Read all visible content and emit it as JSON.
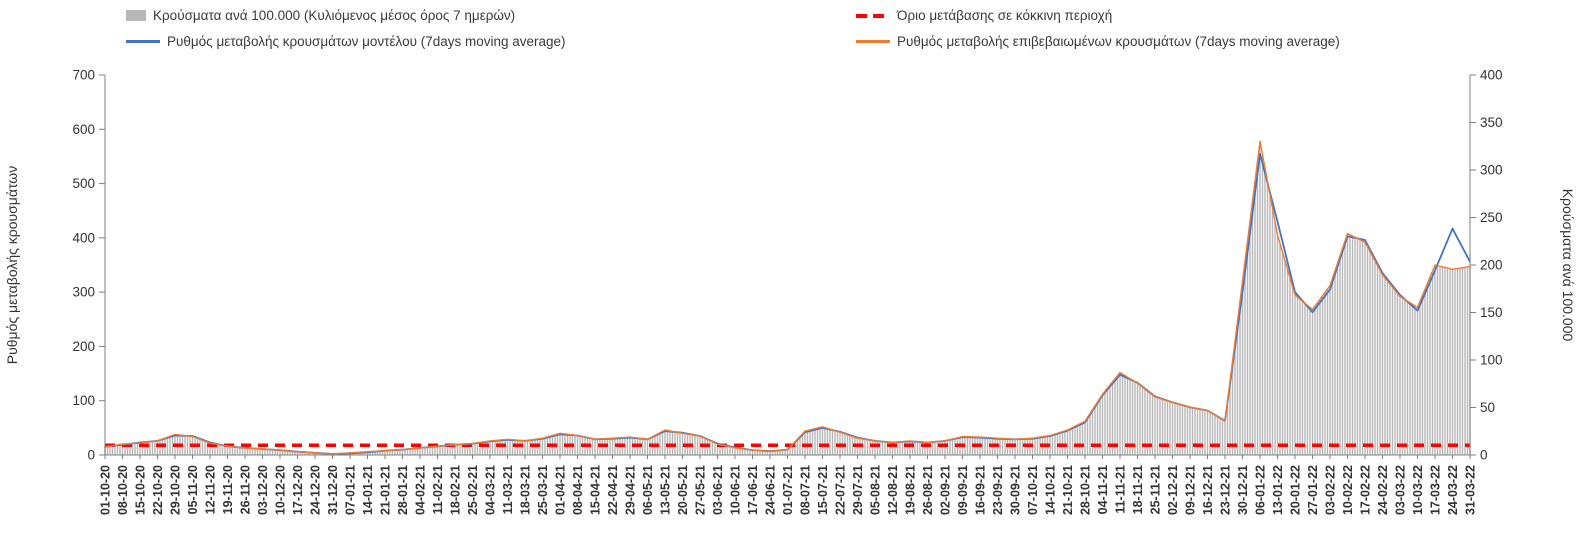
{
  "colors": {
    "bars": "#b7b7b7",
    "model_line": "#4472c4",
    "confirmed_line": "#ed7d31",
    "threshold_line": "#ff0000",
    "axis": "#808080",
    "text": "#333333",
    "background": "#ffffff"
  },
  "chart_data": {
    "type": "combo-bar-line",
    "title": "",
    "grid": false,
    "legend_position": "top",
    "x": [
      "01-10-20",
      "08-10-20",
      "15-10-20",
      "22-10-20",
      "29-10-20",
      "05-11-20",
      "12-11-20",
      "19-11-20",
      "26-11-20",
      "03-12-20",
      "10-12-20",
      "17-12-20",
      "24-12-20",
      "31-12-20",
      "07-01-21",
      "14-01-21",
      "21-01-21",
      "28-01-21",
      "04-02-21",
      "11-02-21",
      "18-02-21",
      "25-02-21",
      "04-03-21",
      "11-03-21",
      "18-03-21",
      "25-03-21",
      "01-04-21",
      "08-04-21",
      "15-04-21",
      "22-04-21",
      "29-04-21",
      "06-05-21",
      "13-05-21",
      "20-05-21",
      "27-05-21",
      "03-06-21",
      "10-06-21",
      "17-06-21",
      "24-06-21",
      "01-07-21",
      "08-07-21",
      "15-07-21",
      "22-07-21",
      "29-07-21",
      "05-08-21",
      "12-08-21",
      "19-08-21",
      "26-08-21",
      "02-09-21",
      "09-09-21",
      "16-09-21",
      "23-09-21",
      "30-09-21",
      "07-10-21",
      "14-10-21",
      "21-10-21",
      "28-10-21",
      "04-11-21",
      "11-11-21",
      "18-11-21",
      "25-11-21",
      "02-12-21",
      "09-12-21",
      "16-12-21",
      "23-12-21",
      "30-12-21",
      "06-01-22",
      "13-01-22",
      "20-01-22",
      "27-01-22",
      "03-02-22",
      "10-02-22",
      "17-02-22",
      "24-02-22",
      "03-03-22",
      "10-03-22",
      "17-03-22",
      "24-03-22",
      "31-03-22"
    ],
    "series": [
      {
        "name": "Κρούσματα ανά 100.000 (Κυλιόμενος μέσος όρος 7 ημερών)",
        "type": "bar",
        "axis": "right",
        "color": "#b7b7b7",
        "values": [
          9,
          11,
          13,
          15,
          22,
          19,
          13,
          9,
          7,
          6,
          5,
          3,
          2,
          1,
          2,
          3,
          5,
          6,
          7,
          9,
          11,
          12,
          15,
          17,
          15,
          18,
          23,
          21,
          17,
          18,
          19,
          17,
          26,
          23,
          20,
          11,
          7,
          5,
          4,
          6,
          25,
          30,
          24,
          18,
          15,
          13,
          15,
          13,
          15,
          19,
          19,
          18,
          17,
          18,
          21,
          26,
          35,
          64,
          87,
          75,
          61,
          55,
          50,
          47,
          35,
          183,
          330,
          231,
          169,
          153,
          178,
          233,
          224,
          190,
          167,
          155,
          200,
          195,
          198
        ]
      },
      {
        "name": "Ρυθμός μεταβολής κρουσμάτων μοντέλου (7days moving average)",
        "type": "line",
        "axis": "left",
        "color": "#4472c4",
        "values": [
          15,
          19,
          23,
          26,
          36,
          35,
          23,
          16,
          13,
          11,
          9,
          6,
          4,
          2,
          3,
          5,
          8,
          10,
          13,
          16,
          19,
          21,
          25,
          28,
          26,
          30,
          38,
          36,
          29,
          30,
          32,
          29,
          44,
          41,
          35,
          21,
          14,
          9,
          7,
          10,
          42,
          50,
          43,
          32,
          26,
          23,
          25,
          23,
          26,
          33,
          32,
          30,
          29,
          30,
          35,
          45,
          60,
          110,
          148,
          133,
          108,
          97,
          88,
          82,
          63,
          300,
          555,
          430,
          300,
          263,
          305,
          403,
          396,
          335,
          295,
          266,
          340,
          417,
          356
        ]
      },
      {
        "name": "Ρυθμός μεταβολής επιβεβαιωμένων κρουσμάτων (7days moving average)",
        "type": "line",
        "axis": "left",
        "color": "#ed7d31",
        "values": [
          15,
          20,
          22,
          26,
          38,
          34,
          22,
          16,
          13,
          11,
          9,
          6,
          4,
          2,
          4,
          6,
          8,
          10,
          13,
          16,
          19,
          21,
          26,
          29,
          26,
          31,
          40,
          36,
          29,
          31,
          33,
          29,
          46,
          40,
          35,
          20,
          13,
          9,
          7,
          10,
          44,
          52,
          42,
          31,
          26,
          23,
          26,
          23,
          26,
          34,
          33,
          31,
          29,
          31,
          36,
          46,
          62,
          112,
          152,
          132,
          107,
          97,
          88,
          82,
          62,
          320,
          578,
          405,
          295,
          268,
          312,
          408,
          392,
          332,
          292,
          272,
          350,
          342,
          347
        ]
      },
      {
        "name": "Όριο μετάβασης σε κόκκινη περιοχή",
        "type": "threshold-line",
        "style": "dashed",
        "axis": "left",
        "color": "#ff0000",
        "value": 18
      }
    ],
    "left_axis": {
      "title": "Ρυθμός μεταβολής κρουσμάτων",
      "min": 0,
      "max": 700,
      "step": 100
    },
    "right_axis": {
      "title": "Κρούσματα ανά 100.000",
      "min": 0,
      "max": 400,
      "step": 50
    }
  }
}
